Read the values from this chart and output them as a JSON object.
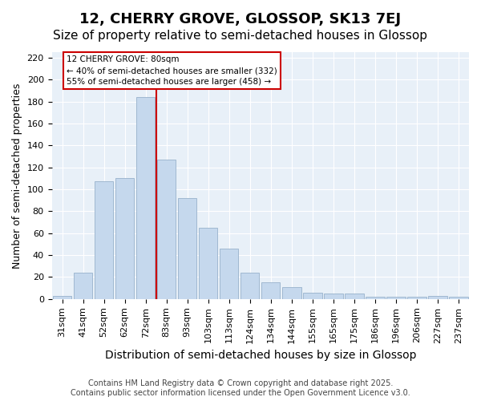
{
  "title": "12, CHERRY GROVE, GLOSSOP, SK13 7EJ",
  "subtitle": "Size of property relative to semi-detached houses in Glossop",
  "xlabel": "Distribution of semi-detached houses by size in Glossop",
  "ylabel": "Number of semi-detached properties",
  "categories": [
    "31sqm",
    "41sqm",
    "52sqm",
    "62sqm",
    "72sqm",
    "83sqm",
    "93sqm",
    "103sqm",
    "113sqm",
    "124sqm",
    "134sqm",
    "144sqm",
    "155sqm",
    "165sqm",
    "175sqm",
    "186sqm",
    "196sqm",
    "206sqm",
    "227sqm",
    "237sqm"
  ],
  "values": [
    3,
    24,
    107,
    110,
    184,
    127,
    92,
    65,
    46,
    24,
    15,
    11,
    6,
    5,
    5,
    2,
    2,
    2,
    3,
    2
  ],
  "bar_color": "#c5d8ed",
  "bar_edge_color": "#a0b8d0",
  "vline_x": 4.5,
  "vline_label": "12 CHERRY GROVE: 80sqm",
  "annotation_line1": "← 40% of semi-detached houses are smaller (332)",
  "annotation_line2": "55% of semi-detached houses are larger (458) →",
  "box_color": "#cc0000",
  "ylim": [
    0,
    225
  ],
  "yticks": [
    0,
    20,
    40,
    60,
    80,
    100,
    120,
    140,
    160,
    180,
    200,
    220
  ],
  "bg_color": "#e8f0f8",
  "footer": "Contains HM Land Registry data © Crown copyright and database right 2025.\nContains public sector information licensed under the Open Government Licence v3.0.",
  "title_fontsize": 13,
  "subtitle_fontsize": 11,
  "xlabel_fontsize": 10,
  "ylabel_fontsize": 9,
  "tick_fontsize": 8,
  "footer_fontsize": 7
}
